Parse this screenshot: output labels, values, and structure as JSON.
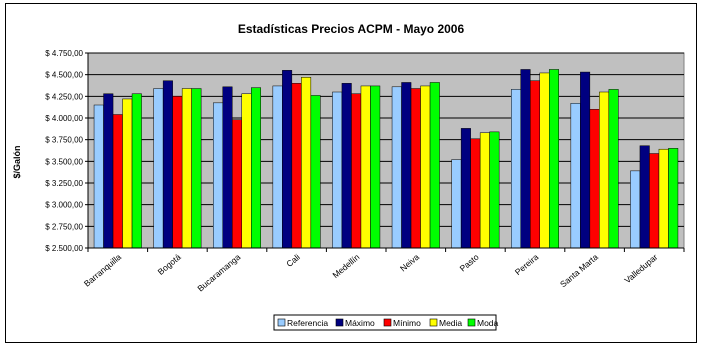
{
  "chart_data": {
    "type": "bar",
    "title": "Estadísticas Precios ACPM - Mayo 2006",
    "xlabel": "",
    "ylabel": "$/Galón",
    "ylim": [
      2500,
      4750
    ],
    "yticks": [
      "$ 2.500,00",
      "$ 2.750,00",
      "$ 3.000,00",
      "$ 3.250,00",
      "$ 3.500,00",
      "$ 3.750,00",
      "$ 4.000,00",
      "$ 4.250,00",
      "$ 4.500,00",
      "$ 4.750,00"
    ],
    "categories": [
      "Barranquilla",
      "Bogotá",
      "Bucaramanga",
      "Cali",
      "Medellín",
      "Neiva",
      "Pasto",
      "Pereira",
      "Santa Marta",
      "Valledupar"
    ],
    "series": [
      {
        "name": "Referencia",
        "color": "#99ccff",
        "values": [
          4150,
          4340,
          4175,
          4370,
          4300,
          4360,
          3520,
          4330,
          4170,
          3390
        ]
      },
      {
        "name": "Máximo",
        "color": "#000080",
        "values": [
          4280,
          4430,
          4360,
          4550,
          4400,
          4410,
          3880,
          4560,
          4530,
          3680
        ]
      },
      {
        "name": "Mínimo",
        "color": "#ff0000",
        "values": [
          4040,
          4250,
          3980,
          4400,
          4280,
          4340,
          3760,
          4430,
          4100,
          3590
        ]
      },
      {
        "name": "Media",
        "color": "#ffff00",
        "values": [
          4220,
          4340,
          4280,
          4470,
          4370,
          4370,
          3830,
          4520,
          4300,
          3640
        ]
      },
      {
        "name": "Moda",
        "color": "#00ff00",
        "values": [
          4280,
          4340,
          4350,
          4260,
          4370,
          4410,
          3840,
          4560,
          4330,
          3650
        ]
      }
    ],
    "plot_background": "#c0c0c0",
    "grid": true,
    "legend_position": "bottom"
  }
}
